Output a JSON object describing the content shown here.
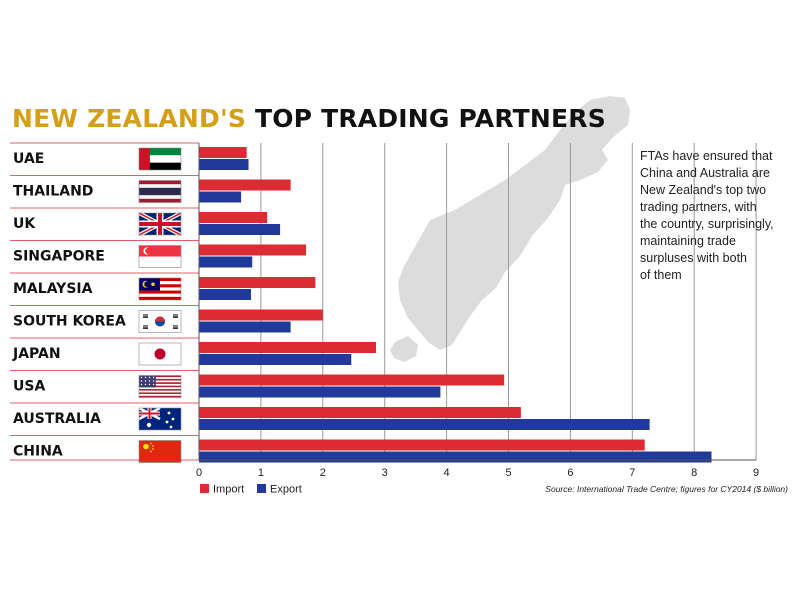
{
  "title": {
    "highlight": "NEW ZEALAND'S",
    "rest": "TOP TRADING PARTNERS"
  },
  "note": {
    "lines": [
      "FTAs have ensured that",
      "China and Australia are",
      "New Zealand's top two",
      "trading partners, with",
      "the country, surprisingly,",
      "maintaining trade",
      "surpluses with both",
      "of them"
    ]
  },
  "source": "Source: International Trade Centre; figures for CY2014 ($ billion)",
  "colors": {
    "import": "#dc2b33",
    "export": "#20399a",
    "highlight": "#d4a017",
    "map": "#dcdcdc"
  },
  "chart_data": {
    "type": "bar",
    "orientation": "horizontal",
    "categories": [
      "UAE",
      "THAILAND",
      "UK",
      "SINGAPORE",
      "MALAYSIA",
      "SOUTH KOREA",
      "JAPAN",
      "USA",
      "AUSTRALIA",
      "CHINA"
    ],
    "flag_icons": [
      "flag-uae-icon",
      "flag-thailand-icon",
      "flag-uk-icon",
      "flag-singapore-icon",
      "flag-malaysia-icon",
      "flag-south-korea-icon",
      "flag-japan-icon",
      "flag-usa-icon",
      "flag-australia-icon",
      "flag-china-icon"
    ],
    "series": [
      {
        "name": "Import",
        "color": "#dc2b33",
        "values": [
          0.77,
          1.48,
          1.1,
          1.73,
          1.88,
          2.0,
          2.86,
          4.93,
          5.2,
          7.2
        ]
      },
      {
        "name": "Export",
        "color": "#20399a",
        "values": [
          0.8,
          0.68,
          1.31,
          0.86,
          0.84,
          1.48,
          2.46,
          3.9,
          7.28,
          8.28
        ]
      }
    ],
    "xlim": [
      0,
      9
    ],
    "xticks": [
      "0",
      "1",
      "2",
      "3",
      "4",
      "5",
      "6",
      "7",
      "8",
      "9"
    ],
    "grid": true,
    "legend_position": "bottom-left"
  }
}
